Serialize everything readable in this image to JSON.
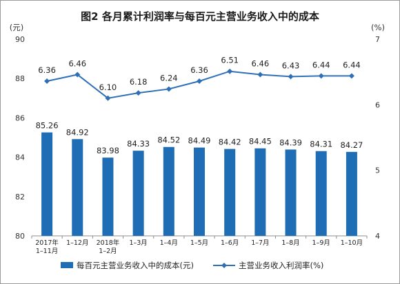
{
  "chart_data": {
    "type": "bar+line",
    "title": "图2 各月累计利润率与每百元主营业务收入中的成本",
    "left_unit": "(元)",
    "right_unit": "(%)",
    "categories": [
      [
        "2017年",
        "1–11月"
      ],
      [
        "1–12月"
      ],
      [
        "2018年",
        "1–2月"
      ],
      [
        "1–3月"
      ],
      [
        "1–4月"
      ],
      [
        "1–5月"
      ],
      [
        "1–6月"
      ],
      [
        "1–7月"
      ],
      [
        "1–8月"
      ],
      [
        "1–9月"
      ],
      [
        "1–10月"
      ]
    ],
    "ylim_left": [
      80,
      90
    ],
    "yticks_left": [
      "80",
      "82",
      "84",
      "86",
      "88",
      "90"
    ],
    "ylim_right": [
      4,
      7
    ],
    "yticks_right": [
      "4",
      "5",
      "6",
      "7"
    ],
    "series": [
      {
        "name": "每百元主营业务收入中的成本(元)",
        "type": "bar",
        "axis": "left",
        "color": "#1f6db5",
        "values": [
          85.26,
          84.92,
          83.98,
          84.33,
          84.52,
          84.49,
          84.42,
          84.45,
          84.39,
          84.31,
          84.27
        ],
        "labels": [
          "85.26",
          "84.92",
          "83.98",
          "84.33",
          "84.52",
          "84.49",
          "84.42",
          "84.45",
          "84.39",
          "84.31",
          "84.27"
        ]
      },
      {
        "name": "主营业务收入利润率(%)",
        "type": "line",
        "axis": "right",
        "color": "#2e6fb7",
        "values": [
          6.36,
          6.46,
          6.1,
          6.18,
          6.24,
          6.36,
          6.51,
          6.46,
          6.43,
          6.44,
          6.44
        ],
        "labels": [
          "6.36",
          "6.46",
          "6.10",
          "6.18",
          "6.24",
          "6.36",
          "6.51",
          "6.46",
          "6.43",
          "6.44",
          "6.44"
        ]
      }
    ],
    "grid": false,
    "legend": "bottom"
  }
}
